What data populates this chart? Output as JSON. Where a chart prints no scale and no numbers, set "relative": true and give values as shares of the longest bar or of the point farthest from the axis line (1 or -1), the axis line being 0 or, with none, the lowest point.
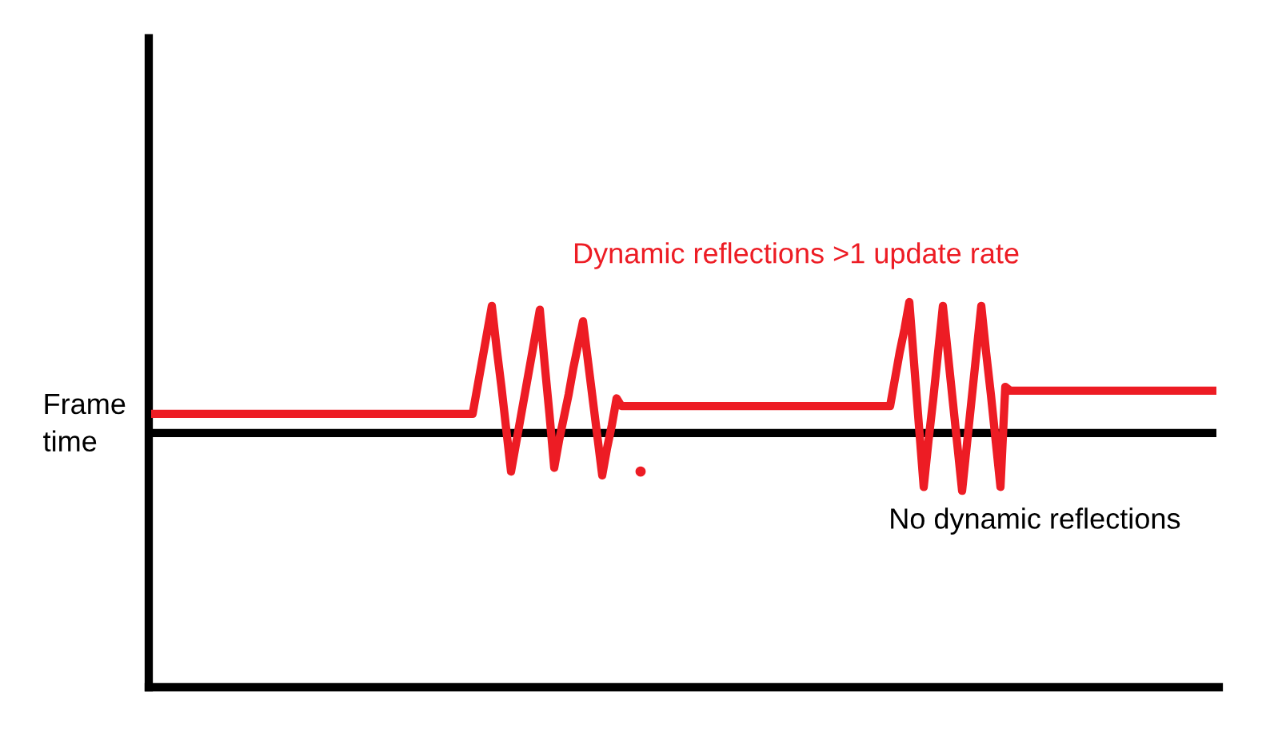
{
  "chart_data": {
    "type": "line",
    "relative": true,
    "ylabel": "Frame time",
    "categories": [
      null,
      null,
      null,
      null,
      null,
      null,
      null,
      null,
      null,
      null,
      null,
      null,
      null,
      null,
      null,
      null,
      null,
      null,
      null,
      null,
      null,
      null,
      null,
      null,
      null,
      null,
      null,
      null,
      null,
      null,
      null,
      null,
      null,
      null,
      null,
      null,
      null,
      null,
      null,
      null,
      null,
      null,
      null,
      null,
      null,
      null,
      null,
      null,
      null,
      null,
      null,
      null,
      null,
      null,
      null,
      null,
      null,
      null,
      null,
      null,
      null,
      null,
      null,
      null,
      null,
      null,
      null,
      null,
      null,
      null,
      null,
      null,
      null,
      null,
      null,
      null,
      null,
      null,
      null,
      null,
      null,
      null,
      null,
      null,
      null,
      null,
      null,
      null,
      null,
      null,
      null,
      null,
      null,
      null,
      null,
      null,
      null,
      null,
      null,
      null,
      null,
      null,
      null,
      null,
      null,
      null,
      null,
      null,
      null,
      null,
      null,
      null,
      null,
      null,
      null,
      null,
      null,
      null,
      null,
      null,
      null,
      null,
      null,
      null,
      null,
      null,
      null,
      null,
      null,
      null,
      null,
      null,
      null,
      null,
      null,
      null,
      null,
      null,
      null,
      null,
      null,
      null,
      null,
      null,
      null,
      null,
      null,
      null,
      null,
      null,
      null,
      null,
      null,
      null,
      null,
      null,
      null,
      null,
      null,
      null,
      null,
      null,
      null,
      null,
      null,
      null,
      null,
      null,
      null,
      null,
      null,
      null,
      null,
      null,
      null,
      null,
      null,
      null,
      null,
      null,
      null,
      null,
      null,
      null,
      null,
      null,
      null,
      null,
      null,
      null,
      null,
      null,
      null,
      null,
      null,
      null,
      null,
      null,
      null,
      null,
      null,
      null,
      null,
      null,
      null,
      null,
      null,
      null,
      null,
      null,
      null,
      null,
      null,
      null,
      null,
      null,
      null,
      null,
      null,
      null,
      null,
      null,
      null
    ],
    "series": [
      {
        "name": "Dynamic reflections >1 update rate",
        "color": "#ed1c24",
        "values": [
          0.71,
          0.71,
          0.71,
          0.71,
          0.71,
          0.71,
          0.71,
          0.71,
          0.71,
          0.71,
          0.71,
          0.71,
          0.71,
          0.71,
          0.71,
          0.71,
          0.71,
          0.71,
          0.71,
          0.71,
          0.71,
          0.71,
          0.71,
          0.71,
          0.71,
          0.71,
          0.71,
          0.71,
          0.71,
          0.71,
          0.71,
          0.71,
          0.71,
          0.71,
          0.71,
          0.71,
          0.71,
          0.71,
          0.71,
          0.71,
          0.71,
          0.71,
          0.71,
          0.71,
          0.71,
          0.71,
          0.71,
          0.71,
          0.71,
          0.71,
          0.71,
          0.71,
          0.71,
          0.71,
          0.71,
          0.71,
          0.71,
          0.71,
          0.71,
          0.71,
          0.71,
          0.71,
          0.71,
          0.71,
          0.71,
          0.71,
          0.71,
          0.71,
          0.78,
          0.85,
          0.92,
          0.99,
          0.88,
          0.78,
          0.67,
          0.56,
          0.63,
          0.7,
          0.77,
          0.84,
          0.91,
          0.98,
          0.84,
          0.71,
          0.57,
          0.64,
          0.7,
          0.76,
          0.83,
          0.89,
          0.95,
          0.85,
          0.75,
          0.65,
          0.55,
          0.62,
          0.68,
          0.75,
          0.73,
          0.73,
          0.73,
          0.73,
          0.73,
          0.73,
          0.73,
          0.73,
          0.73,
          0.73,
          0.73,
          0.73,
          0.73,
          0.73,
          0.73,
          0.73,
          0.73,
          0.73,
          0.73,
          0.73,
          0.73,
          0.73,
          0.73,
          0.73,
          0.73,
          0.73,
          0.73,
          0.73,
          0.73,
          0.73,
          0.73,
          0.73,
          0.73,
          0.73,
          0.73,
          0.73,
          0.73,
          0.73,
          0.73,
          0.73,
          0.73,
          0.73,
          0.73,
          0.73,
          0.73,
          0.73,
          0.73,
          0.73,
          0.73,
          0.73,
          0.73,
          0.73,
          0.73,
          0.73,
          0.73,
          0.73,
          0.73,
          0.8,
          0.87,
          0.93,
          1,
          0.84,
          0.68,
          0.52,
          0.64,
          0.75,
          0.87,
          0.99,
          0.87,
          0.75,
          0.63,
          0.51,
          0.63,
          0.75,
          0.87,
          0.99,
          0.87,
          0.76,
          0.64,
          0.52,
          0.78,
          0.77,
          0.77,
          0.77,
          0.77,
          0.77,
          0.77,
          0.77,
          0.77,
          0.77,
          0.77,
          0.77,
          0.77,
          0.77,
          0.77,
          0.77,
          0.77,
          0.77,
          0.77,
          0.77,
          0.77,
          0.77,
          0.77,
          0.77,
          0.77,
          0.77,
          0.77,
          0.77,
          0.77,
          0.77,
          0.77,
          0.77,
          0.77,
          0.77,
          0.77,
          0.77,
          0.77,
          0.77,
          0.77,
          0.77,
          0.77,
          0.77,
          0.77,
          0.77,
          0.77
        ]
      },
      {
        "name": "No dynamic reflections",
        "color": "#000000",
        "values": [
          0.66,
          0.66,
          0.66,
          0.66,
          0.66,
          0.66,
          0.66,
          0.66,
          0.66,
          0.66,
          0.66,
          0.66,
          0.66,
          0.66,
          0.66,
          0.66,
          0.66,
          0.66,
          0.66,
          0.66,
          0.66,
          0.66,
          0.66,
          0.66,
          0.66,
          0.66,
          0.66,
          0.66,
          0.66,
          0.66,
          0.66,
          0.66,
          0.66,
          0.66,
          0.66,
          0.66,
          0.66,
          0.66,
          0.66,
          0.66,
          0.66,
          0.66,
          0.66,
          0.66,
          0.66,
          0.66,
          0.66,
          0.66,
          0.66,
          0.66,
          0.66,
          0.66,
          0.66,
          0.66,
          0.66,
          0.66,
          0.66,
          0.66,
          0.66,
          0.66,
          0.66,
          0.66,
          0.66,
          0.66,
          0.66,
          0.66,
          0.66,
          0.66,
          0.66,
          0.66,
          0.66,
          0.66,
          0.66,
          0.66,
          0.66,
          0.66,
          0.66,
          0.66,
          0.66,
          0.66,
          0.66,
          0.66,
          0.66,
          0.66,
          0.66,
          0.66,
          0.66,
          0.66,
          0.66,
          0.66,
          0.66,
          0.66,
          0.66,
          0.66,
          0.66,
          0.66,
          0.66,
          0.66,
          0.66,
          0.66,
          0.66,
          0.66,
          0.66,
          0.66,
          0.66,
          0.66,
          0.66,
          0.66,
          0.66,
          0.66,
          0.66,
          0.66,
          0.66,
          0.66,
          0.66,
          0.66,
          0.66,
          0.66,
          0.66,
          0.66,
          0.66,
          0.66,
          0.66,
          0.66,
          0.66,
          0.66,
          0.66,
          0.66,
          0.66,
          0.66,
          0.66,
          0.66,
          0.66,
          0.66,
          0.66,
          0.66,
          0.66,
          0.66,
          0.66,
          0.66,
          0.66,
          0.66,
          0.66,
          0.66,
          0.66,
          0.66,
          0.66,
          0.66,
          0.66,
          0.66,
          0.66,
          0.66,
          0.66,
          0.66,
          0.66,
          0.66,
          0.66,
          0.66,
          0.66,
          0.66,
          0.66,
          0.66,
          0.66,
          0.66,
          0.66,
          0.66,
          0.66,
          0.66,
          0.66,
          0.66,
          0.66,
          0.66,
          0.66,
          0.66,
          0.66,
          0.66,
          0.66,
          0.66,
          0.66,
          0.66,
          0.66,
          0.66,
          0.66,
          0.66,
          0.66,
          0.66,
          0.66,
          0.66,
          0.66,
          0.66,
          0.66,
          0.66,
          0.66,
          0.66,
          0.66,
          0.66,
          0.66,
          0.66,
          0.66,
          0.66,
          0.66,
          0.66,
          0.66,
          0.66,
          0.66,
          0.66,
          0.66,
          0.66,
          0.66,
          0.66,
          0.66,
          0.66,
          0.66,
          0.66,
          0.66,
          0.66,
          0.66,
          0.66,
          0.66,
          0.66,
          0.66,
          0.66,
          0.66
        ]
      },
      {
        "marker": "circle",
        "color": "#ed1c24",
        "values": [
          null,
          null,
          null,
          null,
          null,
          null,
          null,
          null,
          null,
          null,
          null,
          null,
          null,
          null,
          null,
          null,
          null,
          null,
          null,
          null,
          null,
          null,
          null,
          null,
          null,
          null,
          null,
          null,
          null,
          null,
          null,
          null,
          null,
          null,
          null,
          null,
          null,
          null,
          null,
          null,
          null,
          null,
          null,
          null,
          null,
          null,
          null,
          null,
          null,
          null,
          null,
          null,
          null,
          null,
          null,
          null,
          null,
          null,
          null,
          null,
          null,
          null,
          null,
          null,
          null,
          null,
          null,
          null,
          null,
          null,
          null,
          null,
          null,
          null,
          null,
          null,
          null,
          null,
          null,
          null,
          null,
          null,
          null,
          null,
          null,
          null,
          null,
          null,
          null,
          null,
          null,
          null,
          null,
          null,
          null,
          null,
          null,
          null,
          null,
          null,
          null,
          null,
          0.56,
          null,
          null,
          null,
          null,
          null,
          null,
          null,
          null,
          null,
          null,
          null,
          null,
          null,
          null,
          null,
          null,
          null,
          null,
          null,
          null,
          null,
          null,
          null,
          null,
          null,
          null,
          null,
          null,
          null,
          null,
          null,
          null,
          null,
          null,
          null,
          null,
          null,
          null,
          null,
          null,
          null,
          null,
          null,
          null,
          null,
          null,
          null,
          null,
          null,
          null,
          null,
          null,
          null,
          null,
          null,
          null,
          null,
          null,
          null,
          null,
          null,
          null,
          null,
          null,
          null,
          null,
          null,
          null,
          null,
          null,
          null,
          null,
          null,
          null,
          null,
          null,
          null,
          null,
          null,
          null,
          null,
          null,
          null,
          null,
          null,
          null,
          null,
          null,
          null,
          null,
          null,
          null,
          null,
          null,
          null,
          null,
          null,
          null,
          null,
          null,
          null,
          null,
          null,
          null,
          null,
          null,
          null,
          null,
          null,
          null,
          null,
          null,
          null,
          null,
          null,
          null,
          null,
          null,
          null,
          null
        ]
      }
    ]
  }
}
